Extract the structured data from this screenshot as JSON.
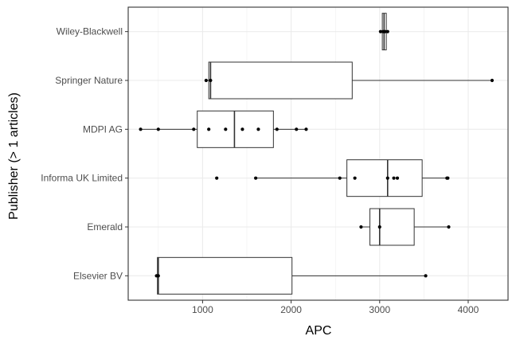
{
  "chart_data": {
    "type": "boxplot",
    "xlabel": "APC",
    "ylabel": "Publisher (> 1 articles)",
    "xlim": [
      160,
      4450
    ],
    "x_ticks": [
      1000,
      2000,
      3000,
      4000
    ],
    "grid": true,
    "categories": [
      "Wiley-Blackwell",
      "Springer Nature",
      "MDPI AG",
      "Informa UK Limited",
      "Emerald",
      "Elsevier BV"
    ],
    "boxes": [
      {
        "category": "Wiley-Blackwell",
        "whisker_low": 3010,
        "q1": 3030,
        "median": 3050,
        "q3": 3075,
        "whisker_high": 3090,
        "points": [
          3010,
          3040,
          3060,
          3090
        ]
      },
      {
        "category": "Springer Nature",
        "whisker_low": 1040,
        "q1": 1070,
        "median": 1090,
        "q3": 2690,
        "whisker_high": 4270,
        "points": [
          1040,
          1090,
          4270
        ]
      },
      {
        "category": "MDPI AG",
        "whisker_low": 300,
        "q1": 940,
        "median": 1360,
        "q3": 1800,
        "whisker_high": 2170,
        "points": [
          300,
          500,
          900,
          1070,
          1260,
          1450,
          1630,
          1840,
          2060,
          2170
        ]
      },
      {
        "category": "Informa UK Limited",
        "whisker_low": 1600,
        "q1": 2630,
        "median": 3090,
        "q3": 3480,
        "whisker_high": 3760,
        "points": [
          1160,
          1600,
          2550,
          2720,
          3090,
          3160,
          3200,
          3760,
          3770
        ]
      },
      {
        "category": "Emerald",
        "whisker_low": 2790,
        "q1": 2890,
        "median": 3000,
        "q3": 3390,
        "whisker_high": 3780,
        "points": [
          2790,
          3000,
          3780
        ]
      },
      {
        "category": "Elsevier BV",
        "whisker_low": 480,
        "q1": 490,
        "median": 500,
        "q3": 2010,
        "whisker_high": 3520,
        "points": [
          480,
          500,
          3520
        ]
      }
    ]
  }
}
